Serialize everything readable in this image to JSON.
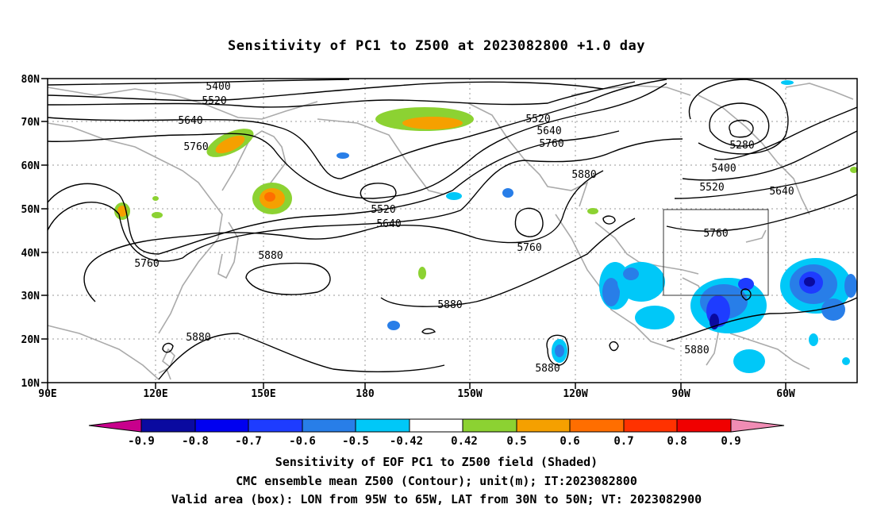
{
  "title": "Sensitivity of PC1 to Z500 at 2023082800 +1.0 day",
  "lat_labels": [
    "80N",
    "70N",
    "60N",
    "50N",
    "40N",
    "30N",
    "20N",
    "10N"
  ],
  "lon_labels": [
    "90E",
    "120E",
    "150E",
    "180",
    "150W",
    "120W",
    "90W",
    "60W"
  ],
  "contour_labels": [
    "5400",
    "5520",
    "5640",
    "5760",
    "5280",
    "5400",
    "5520",
    "5640",
    "5520",
    "5640",
    "5760",
    "5880",
    "5520",
    "5640",
    "5760",
    "5760",
    "5880",
    "5880",
    "5880",
    "5880",
    "5760",
    "5880"
  ],
  "colorbar": {
    "colors": [
      "#c8008c",
      "#0a0aa0",
      "#0000f0",
      "#1e3cff",
      "#287ee8",
      "#00c8f8",
      "#ffffff",
      "#8cd232",
      "#f5a000",
      "#ff6e00",
      "#ff3200",
      "#f00000",
      "#f08cb4"
    ],
    "labels": [
      "-0.9",
      "-0.8",
      "-0.7",
      "-0.6",
      "-0.5",
      "-0.42",
      "0.42",
      "0.5",
      "0.6",
      "0.7",
      "0.8",
      "0.9"
    ]
  },
  "box": {
    "lon_from": "95W",
    "lon_to": "65W",
    "lat_from": "30N",
    "lat_to": "50N"
  },
  "footer": {
    "line1": "Sensitivity of EOF PC1 to Z500 field (Shaded)",
    "line2": "CMC ensemble mean Z500 (Contour); unit(m); IT:2023082800",
    "line3": "Valid area (box): LON from 95W to 65W, LAT from 30N to 50N; VT: 2023082900"
  }
}
